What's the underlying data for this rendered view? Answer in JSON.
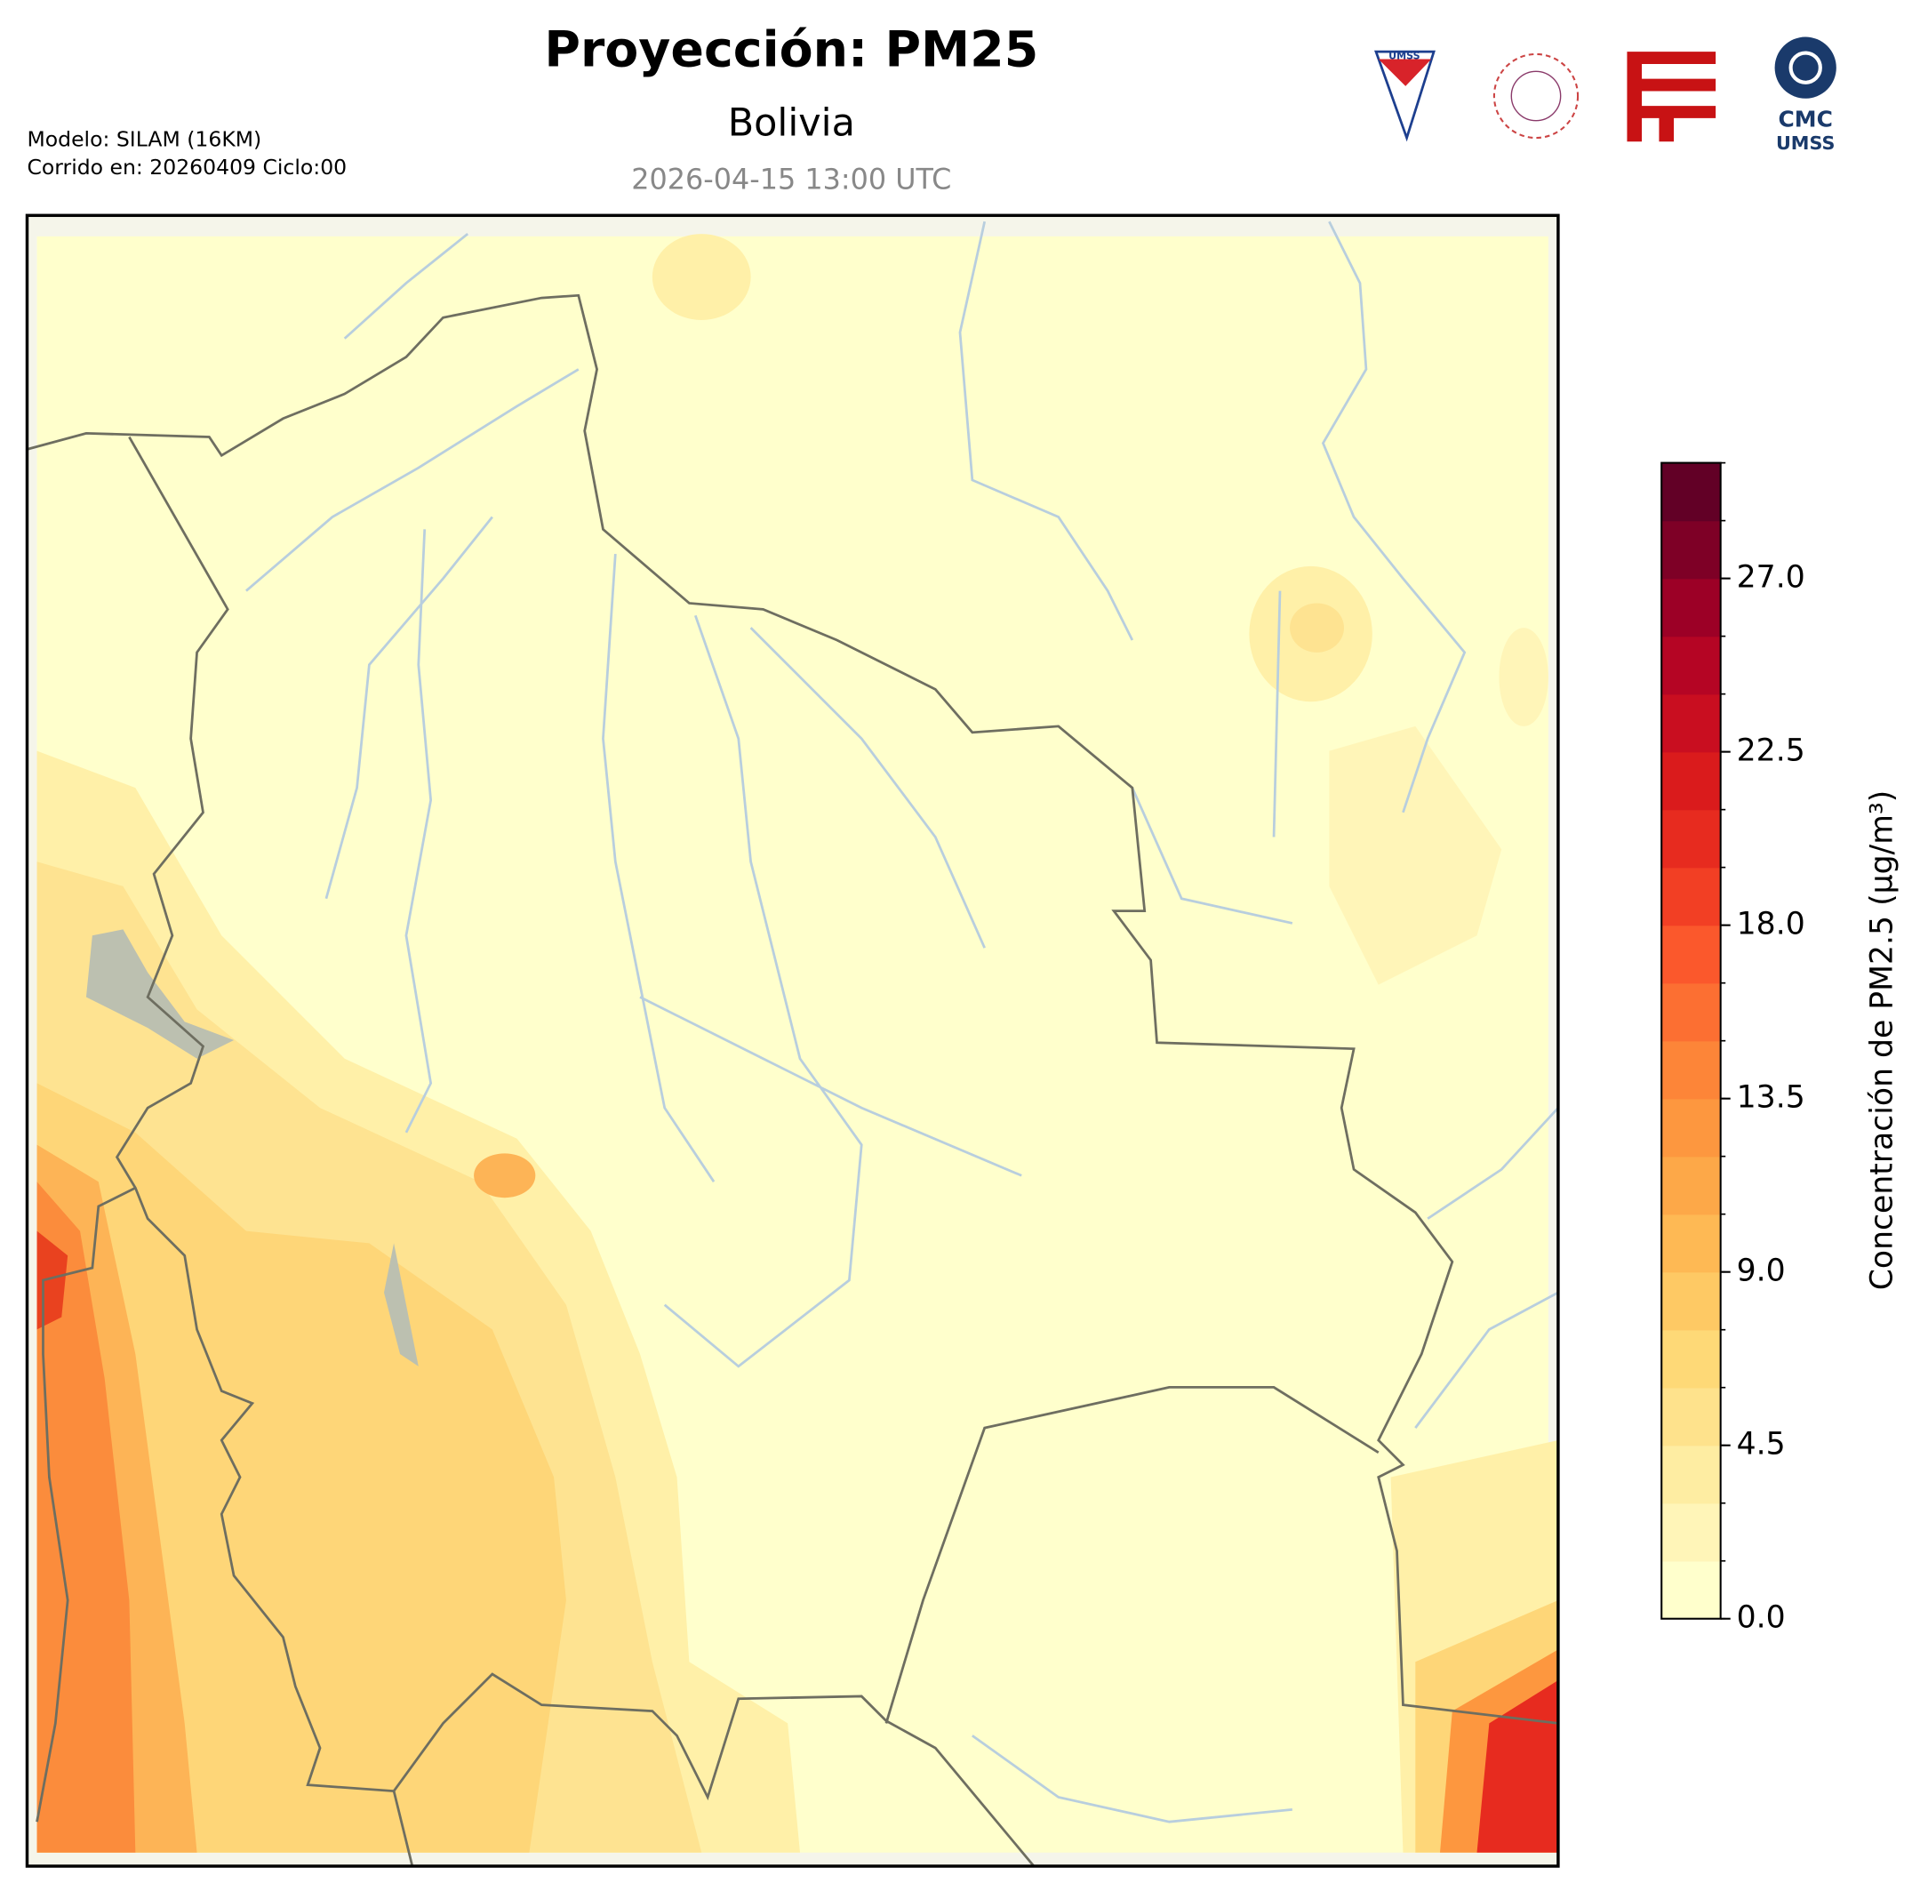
{
  "header": {
    "title": "Proyección: PM25",
    "subtitle": "Bolivia",
    "date": "2026-04-15 13:00 UTC",
    "model": "Modelo: SILAM (16KM)",
    "run": "Corrido en: 20260409 Ciclo:00"
  },
  "logos": {
    "umss": "UMSS",
    "cmc": "CMC",
    "cmc_sub": "UMSS"
  },
  "colorbar": {
    "label": "Concentración de PM2.5 (µg/m³)",
    "lim": [
      0,
      30
    ],
    "levels": [
      0,
      1.5,
      3,
      4.5,
      6,
      7.5,
      9,
      10.5,
      12,
      13.5,
      15,
      16.5,
      18,
      19.5,
      21,
      22.5,
      24,
      25.5,
      27,
      28.5,
      30
    ],
    "colors": [
      "#ffffcc",
      "#fff5b8",
      "#feeda2",
      "#fee28c",
      "#fed977",
      "#fec964",
      "#feb954",
      "#fda848",
      "#fd973f",
      "#fd8538",
      "#fc6f32",
      "#fb582c",
      "#f23f24",
      "#e72b1f",
      "#da1b1c",
      "#c90e20",
      "#b50524",
      "#9c0026",
      "#7e0026",
      "#620026"
    ],
    "ticks": [
      {
        "value": 0,
        "label": "0.0"
      },
      {
        "value": 4.5,
        "label": "4.5"
      },
      {
        "value": 9,
        "label": "9.0"
      },
      {
        "value": 13.5,
        "label": "13.5"
      },
      {
        "value": 18,
        "label": "18.0"
      },
      {
        "value": 22.5,
        "label": "22.5"
      },
      {
        "value": 27,
        "label": "27.0"
      }
    ]
  }
}
